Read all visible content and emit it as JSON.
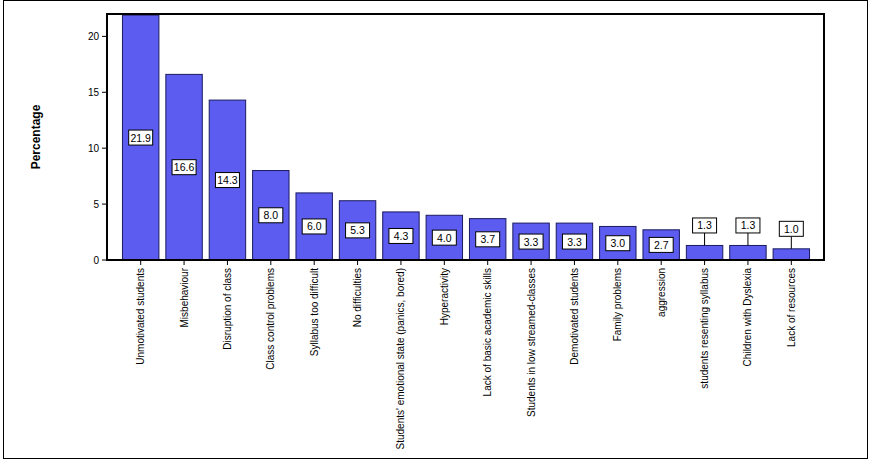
{
  "chart_data": {
    "type": "bar",
    "y_label": "Percentage",
    "categories": [
      "Unmotivated students",
      "Misbehaviour",
      "Disruption of class",
      "Class control problems",
      "Syllabus too difficult",
      "No difficulties",
      "Students' emotional state (panics, bored)",
      "Hyperactivity",
      "Lack of basic academic skills",
      "Students in low streamed-classes",
      "Demotivated students",
      "Family problems",
      "aggression",
      "students resenting syllabus",
      "Children with Dyslexia",
      "Lack of resources"
    ],
    "values": [
      21.9,
      16.6,
      14.3,
      8.0,
      6.0,
      5.3,
      4.3,
      4.0,
      3.7,
      3.3,
      3.3,
      3.0,
      2.7,
      1.3,
      1.3,
      1.0
    ],
    "color": "#5c5cf0",
    "ylim": [
      0,
      22
    ],
    "yticks": [
      0,
      5,
      10,
      15,
      20
    ],
    "grid": false,
    "data_labels": true
  }
}
